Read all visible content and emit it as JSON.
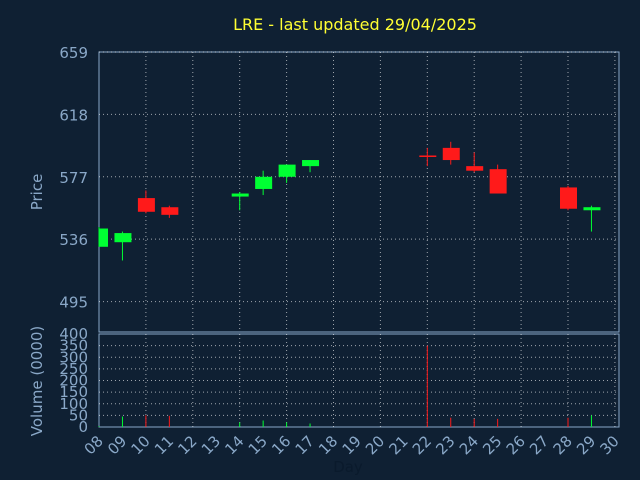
{
  "chart_data": [
    {
      "type": "candlestick",
      "title": "LRE - last updated 29/04/2025",
      "xlabel": "Day",
      "ylabel": "Price",
      "ylim": [
        475,
        659
      ],
      "yticks": [
        "659",
        "618",
        "577",
        "536",
        "495"
      ],
      "grid": true,
      "categories": [
        "08",
        "09",
        "10",
        "11",
        "12",
        "13",
        "14",
        "15",
        "16",
        "17",
        "18",
        "19",
        "20",
        "21",
        "22",
        "23",
        "24",
        "25",
        "26",
        "27",
        "28",
        "29",
        "30"
      ],
      "candles": [
        {
          "day": "08",
          "open": 531,
          "close": 543,
          "high": 544,
          "low": 531
        },
        {
          "day": "09",
          "open": 534,
          "close": 540,
          "high": 541,
          "low": 522
        },
        {
          "day": "10",
          "open": 563,
          "close": 554,
          "high": 568,
          "low": 553
        },
        {
          "day": "11",
          "open": 557,
          "close": 552,
          "high": 558,
          "low": 550
        },
        {
          "day": "14",
          "open": 564,
          "close": 566,
          "high": 567,
          "low": 555
        },
        {
          "day": "15",
          "open": 569,
          "close": 577,
          "high": 581,
          "low": 565
        },
        {
          "day": "16",
          "open": 577,
          "close": 585,
          "high": 585,
          "low": 573
        },
        {
          "day": "17",
          "open": 584,
          "close": 588,
          "high": 588,
          "low": 580
        },
        {
          "day": "22",
          "open": 591,
          "close": 590,
          "high": 596,
          "low": 584
        },
        {
          "day": "23",
          "open": 596,
          "close": 588,
          "high": 600,
          "low": 585
        },
        {
          "day": "24",
          "open": 584,
          "close": 581,
          "high": 593,
          "low": 580
        },
        {
          "day": "25",
          "open": 582,
          "close": 566,
          "high": 585,
          "low": 566
        },
        {
          "day": "28",
          "open": 570,
          "close": 556,
          "high": 571,
          "low": 555
        },
        {
          "day": "29",
          "open": 555,
          "close": 557,
          "high": 558,
          "low": 541
        }
      ],
      "colors": {
        "up": "#00ff33",
        "down": "#ff1a1a",
        "background": "#0f2033",
        "text": "#8aa8c8",
        "title": "#ffff33",
        "grid": "#ffffff"
      }
    },
    {
      "type": "bar",
      "ylabel": "Volume (0000)",
      "ylim": [
        0,
        400
      ],
      "yticks": [
        "400",
        "350",
        "300",
        "250",
        "200",
        "150",
        "100",
        "50",
        "0"
      ],
      "volumes": [
        {
          "day": "08",
          "value": 3,
          "color": "up"
        },
        {
          "day": "09",
          "value": 45,
          "color": "up"
        },
        {
          "day": "10",
          "value": 50,
          "color": "down"
        },
        {
          "day": "11",
          "value": 48,
          "color": "down"
        },
        {
          "day": "14",
          "value": 20,
          "color": "up"
        },
        {
          "day": "15",
          "value": 28,
          "color": "up"
        },
        {
          "day": "16",
          "value": 20,
          "color": "up"
        },
        {
          "day": "17",
          "value": 15,
          "color": "up"
        },
        {
          "day": "22",
          "value": 350,
          "color": "down"
        },
        {
          "day": "23",
          "value": 40,
          "color": "down"
        },
        {
          "day": "24",
          "value": 35,
          "color": "down"
        },
        {
          "day": "25",
          "value": 35,
          "color": "down"
        },
        {
          "day": "28",
          "value": 40,
          "color": "down"
        },
        {
          "day": "29",
          "value": 50,
          "color": "up"
        }
      ]
    }
  ]
}
